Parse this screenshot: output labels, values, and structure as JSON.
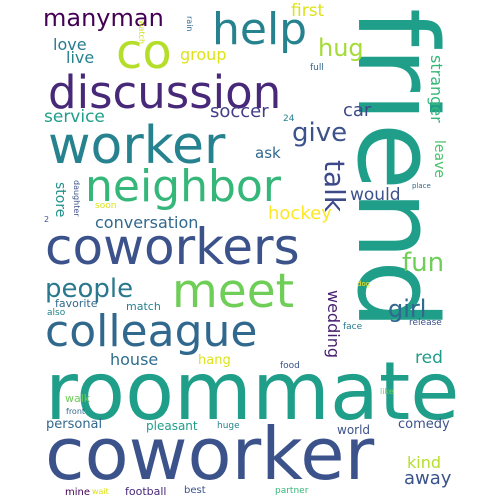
{
  "words": {
    "friend": "friend",
    "roommate": "roommate",
    "coworker": "coworker",
    "coworkers": "coworkers",
    "discussion": "discussion",
    "worker": "worker",
    "neighbor": "neighbor",
    "colleague": "colleague",
    "meet": "meet",
    "co": "co",
    "help": "help",
    "manyman": "manyman",
    "talk": "talk",
    "people": "people",
    "give": "give",
    "hug": "hug",
    "fun": "fun",
    "girl": "girl",
    "hockey": "hockey",
    "soccer": "soccer",
    "car": "car",
    "wedding": "wedding",
    "first": "first",
    "stranger": "stranger",
    "service": "service",
    "conversation": "conversation",
    "group": "group",
    "love": "love",
    "live": "live",
    "would": "would",
    "leave": "leave",
    "store": "store",
    "ask": "ask",
    "house": "house",
    "red": "red",
    "kind": "kind",
    "away": "away",
    "comedy": "comedy",
    "personal": "personal",
    "pleasant": "pleasant",
    "world": "world",
    "hang": "hang",
    "match": "match",
    "favorite": "favorite",
    "walk": "walk",
    "football": "football",
    "best": "best",
    "partner": "partner",
    "mine": "mine",
    "wait": "wait",
    "front": "front",
    "food": "food",
    "huge": "huge",
    "face": "face",
    "release": "release",
    "like": "like",
    "place": "place",
    "dog": "dog",
    "watch": "watch",
    "rain": "rain",
    "full": "full",
    "n24": "24",
    "soon": "soon",
    "daughter": "daughter",
    "also": "also",
    "n2": "2"
  },
  "colors": {
    "friend": "#1f9e89",
    "roommate": "#1f9e89",
    "coworker": "#3b528b",
    "coworkers": "#3b528b",
    "discussion": "#482878",
    "worker": "#26828e",
    "neighbor": "#35b779",
    "colleague": "#31688e",
    "meet": "#6ece58",
    "co": "#b5de2b",
    "help": "#26828e",
    "manyman": "#440154",
    "talk": "#3e4989",
    "people": "#2a788e",
    "give": "#3b528b",
    "hug": "#a5db36",
    "fun": "#6ece58",
    "girl": "#31688e",
    "hockey": "#fde725",
    "soccer": "#433e85",
    "car": "#3e4989",
    "wedding": "#481f70",
    "first": "#dde318",
    "stranger": "#35b779",
    "service": "#1f9e89",
    "conversation": "#31688e",
    "group": "#dde318",
    "love": "#287c8e",
    "live": "#26828e",
    "would": "#3b528b",
    "leave": "#4ac16d",
    "store": "#21918c",
    "ask": "#31688e",
    "house": "#2e6e8e",
    "red": "#1e9b8a",
    "kind": "#b5de2b",
    "away": "#3b528b",
    "comedy": "#3b528b",
    "personal": "#31688e",
    "pleasant": "#1f9e89",
    "world": "#3b528b",
    "hang": "#dde318",
    "match": "#26828e",
    "favorite": "#31688e",
    "walk": "#6ece58",
    "football": "#482878",
    "best": "#3b528b",
    "partner": "#35b779",
    "mine": "#440154",
    "wait": "#dde318",
    "front": "#31688e",
    "food": "#3b528b",
    "huge": "#26828e",
    "face": "#2a788e",
    "release": "#3b528b",
    "like": "#6ece58",
    "place": "#31688e",
    "dog": "#fde725",
    "watch": "#cfe11c",
    "rain": "#31688e",
    "full": "#31688e",
    "n24": "#26828e",
    "soon": "#dde318",
    "daughter": "#3b528b",
    "also": "#26828e",
    "n2": "#3b528b"
  }
}
